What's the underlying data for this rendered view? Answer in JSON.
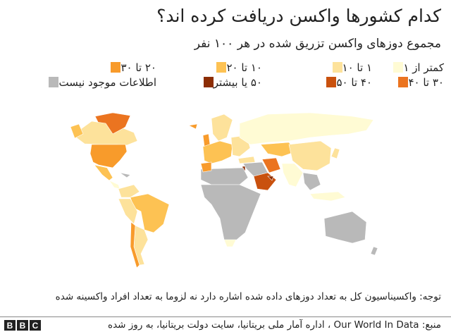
{
  "title": "کدام کشورها واکسن دریافت کرده اند؟",
  "subtitle": "مجموع دوزهای واکسن تزریق شده در هر ۱۰۰ نفر",
  "legend": [
    {
      "label": "کمتر از ۱",
      "color": "#fffbd4"
    },
    {
      "label": "۳۰ تا ۴۰",
      "color": "#eb7420"
    },
    {
      "label": "۱ تا ۱۰",
      "color": "#fde29b"
    },
    {
      "label": "۴۰ تا ۵۰",
      "color": "#c9510e"
    },
    {
      "label": "۱۰ تا ۲۰",
      "color": "#fdc253"
    },
    {
      "label": "۵۰ یا بیشتر",
      "color": "#8c2d04"
    },
    {
      "label": "۲۰ تا ۳۰",
      "color": "#f89b2b"
    },
    {
      "label": "اطلاعات موجود نیست",
      "color": "#b9b9b9"
    }
  ],
  "note": "توجه: واکسیناسیون کل به تعداد دوزهای داده شده اشاره دارد نه لزوما به تعداد افراد واکسینه شده",
  "source": "منبع: Our World In Data ، اداره آمار ملی بریتانیا، سایت دولت بریتانیا، به روز شده",
  "logo": [
    "B",
    "B",
    "C"
  ]
}
